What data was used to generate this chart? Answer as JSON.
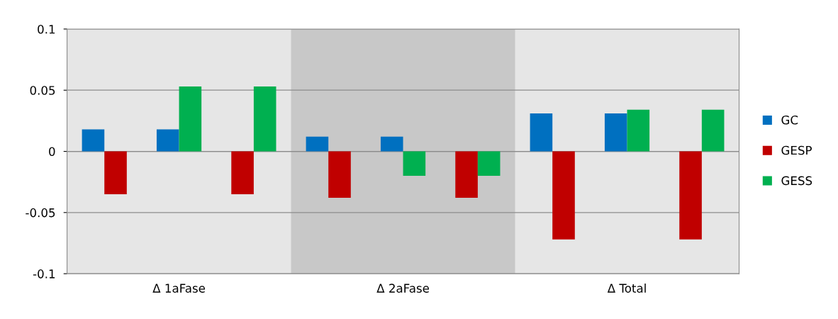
{
  "chart_data": {
    "type": "bar",
    "categories": [
      null,
      "Δ 1aFase",
      null,
      null,
      "Δ 2aFase",
      null,
      null,
      "Δ Total",
      null
    ],
    "series": [
      {
        "name": "GC",
        "color": "#0070c0",
        "values": [
          0.018,
          0.018,
          null,
          0.012,
          0.012,
          null,
          0.031,
          0.031,
          null
        ]
      },
      {
        "name": "GESP",
        "color": "#c00000",
        "values": [
          -0.035,
          null,
          -0.035,
          -0.038,
          null,
          -0.038,
          -0.072,
          null,
          -0.072
        ]
      },
      {
        "name": "GESS",
        "color": "#00b050",
        "values": [
          null,
          0.053,
          0.053,
          null,
          -0.02,
          -0.02,
          null,
          0.034,
          0.034
        ]
      }
    ],
    "ylim": [
      -0.1,
      0.1
    ],
    "yticks": [
      {
        "value": -0.1,
        "label": "-0.1"
      },
      {
        "value": -0.05,
        "label": "-0.05"
      },
      0,
      0.05,
      0.1
    ],
    "grid": "y",
    "legend": "right"
  }
}
